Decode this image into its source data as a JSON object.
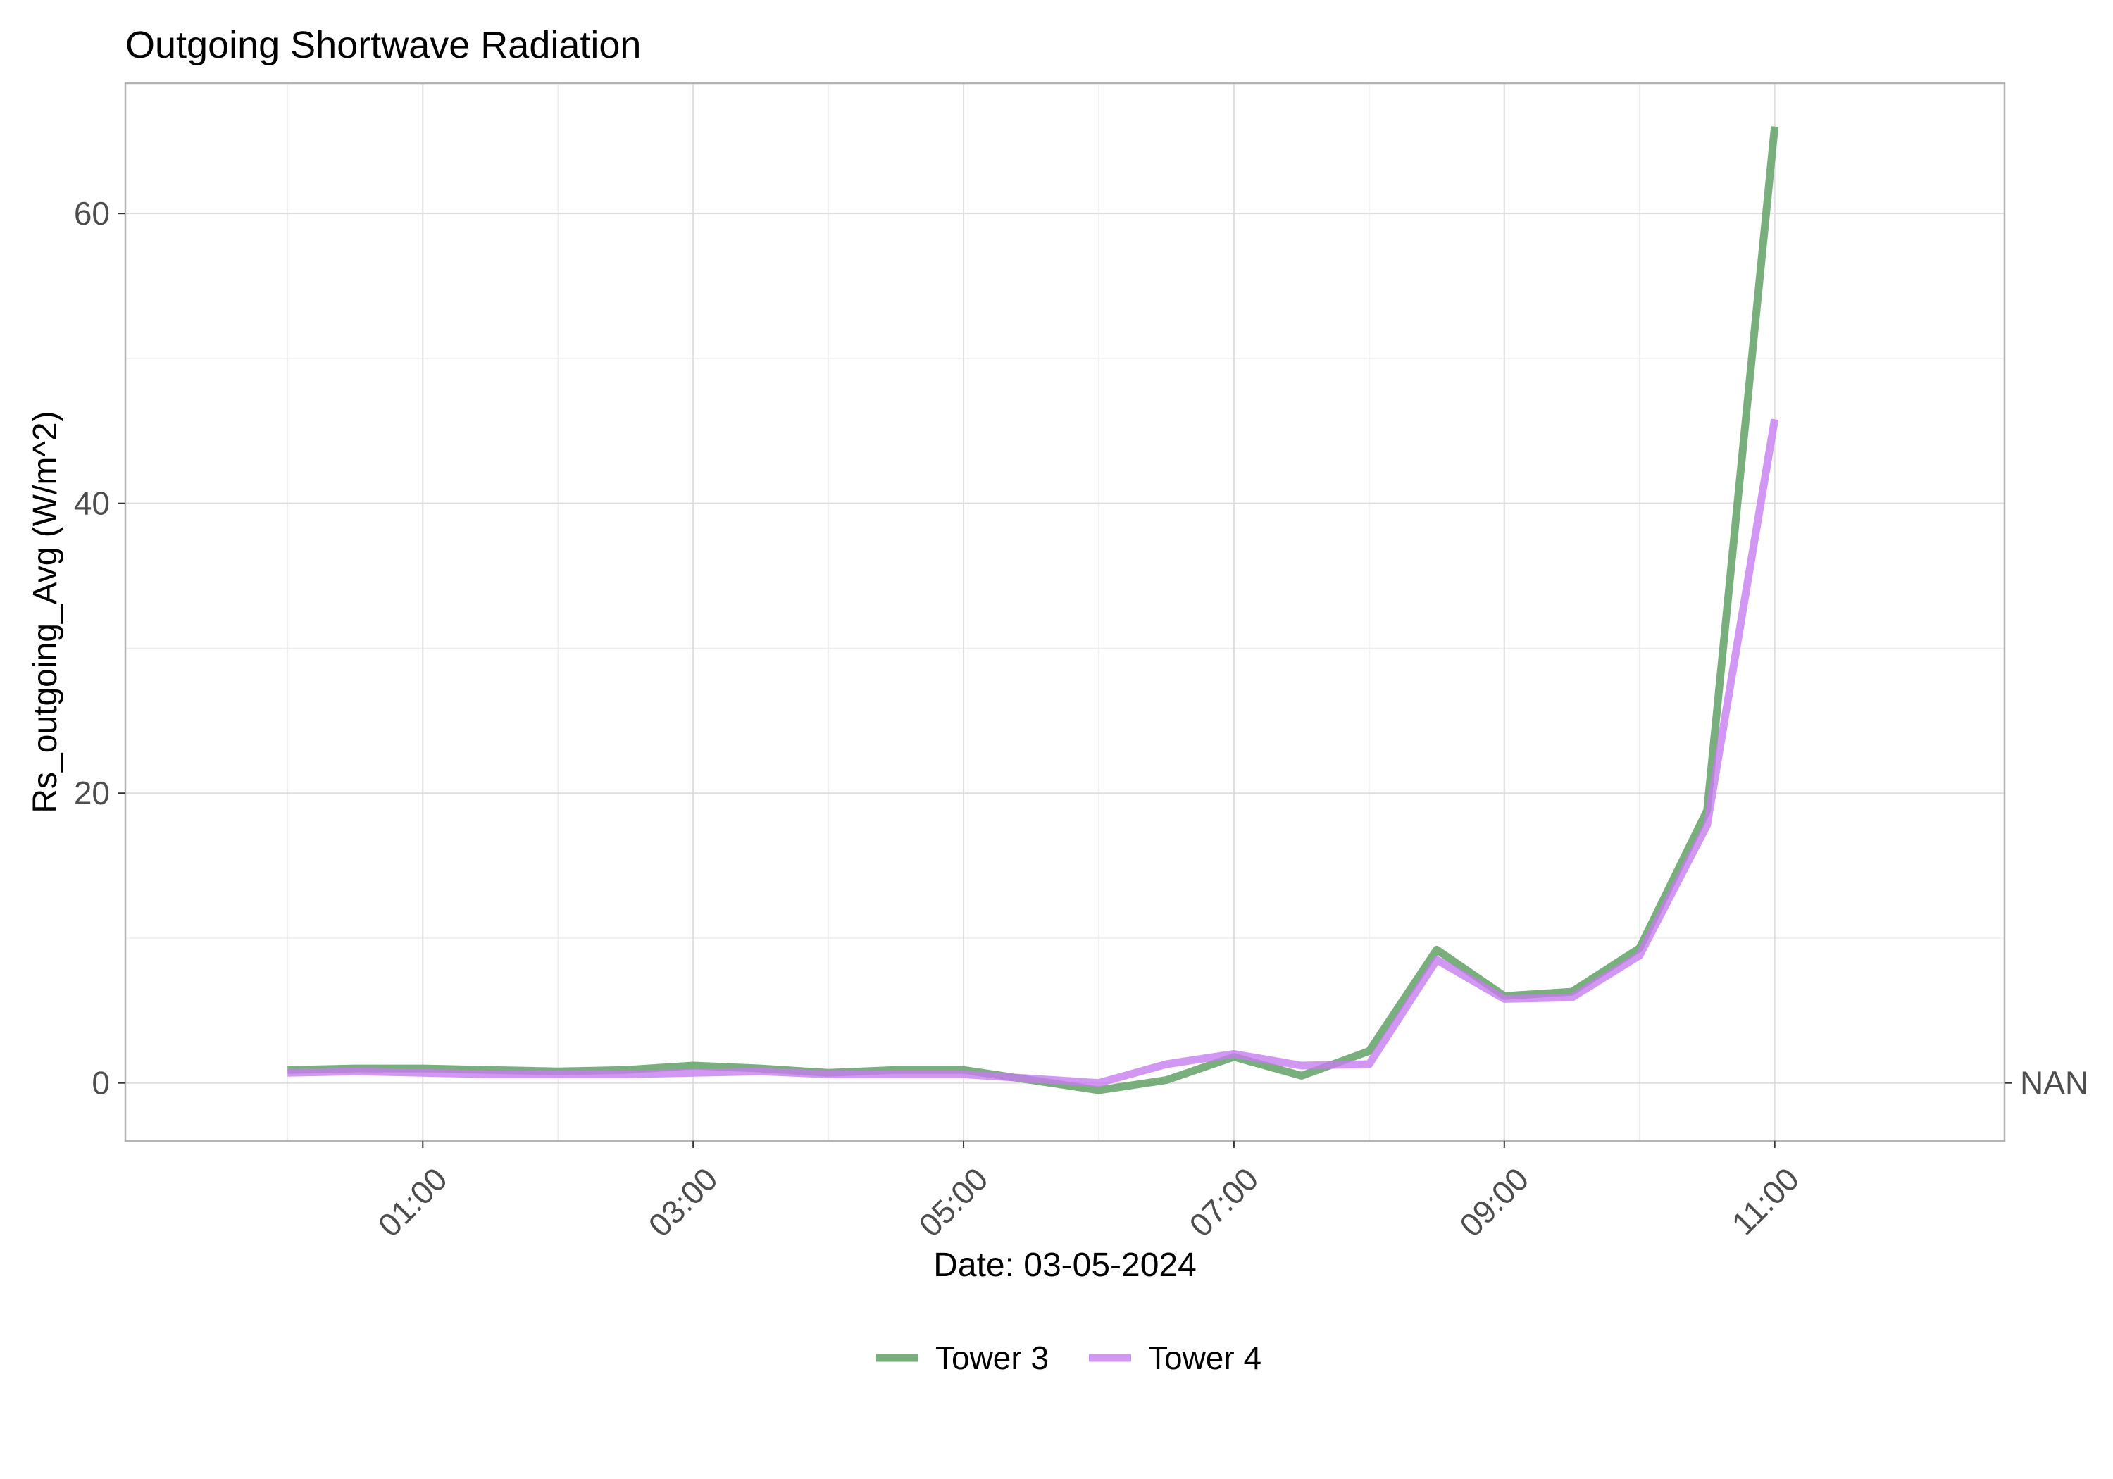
{
  "chart_data": {
    "type": "line",
    "title": "Outgoing Shortwave Radiation",
    "xlabel": "Date: 03-05-2024",
    "ylabel": "Rs_outgoing_Avg (W/m^2)",
    "secondary_y_tick": "NAN",
    "x_ticks": [
      "01:00",
      "03:00",
      "05:00",
      "07:00",
      "09:00",
      "11:00"
    ],
    "y_ticks": [
      0,
      20,
      40,
      60
    ],
    "xlim": [
      "00:00",
      "11:30"
    ],
    "ylim": [
      -4,
      69
    ],
    "grid": true,
    "legend_position": "bottom",
    "x": [
      "00:00",
      "00:30",
      "01:00",
      "01:30",
      "02:00",
      "02:30",
      "03:00",
      "03:30",
      "04:00",
      "04:30",
      "05:00",
      "05:30",
      "06:00",
      "06:30",
      "07:00",
      "07:30",
      "08:00",
      "08:30",
      "09:00",
      "09:30",
      "10:00",
      "10:30",
      "11:00"
    ],
    "series": [
      {
        "name": "Tower 3",
        "color": "#6aa66e",
        "values": [
          0.9,
          1.0,
          1.0,
          0.9,
          0.8,
          0.9,
          1.2,
          1.0,
          0.7,
          0.9,
          0.9,
          0.2,
          -0.5,
          0.2,
          1.8,
          0.5,
          2.2,
          9.2,
          6.0,
          6.3,
          9.3,
          18.8,
          66.0
        ]
      },
      {
        "name": "Tower 4",
        "color": "#c77cf0",
        "values": [
          0.7,
          0.8,
          0.7,
          0.6,
          0.6,
          0.6,
          0.7,
          0.8,
          0.6,
          0.6,
          0.6,
          0.3,
          0.0,
          1.3,
          2.0,
          1.2,
          1.3,
          8.5,
          5.8,
          5.9,
          8.8,
          17.8,
          45.8
        ]
      }
    ]
  }
}
